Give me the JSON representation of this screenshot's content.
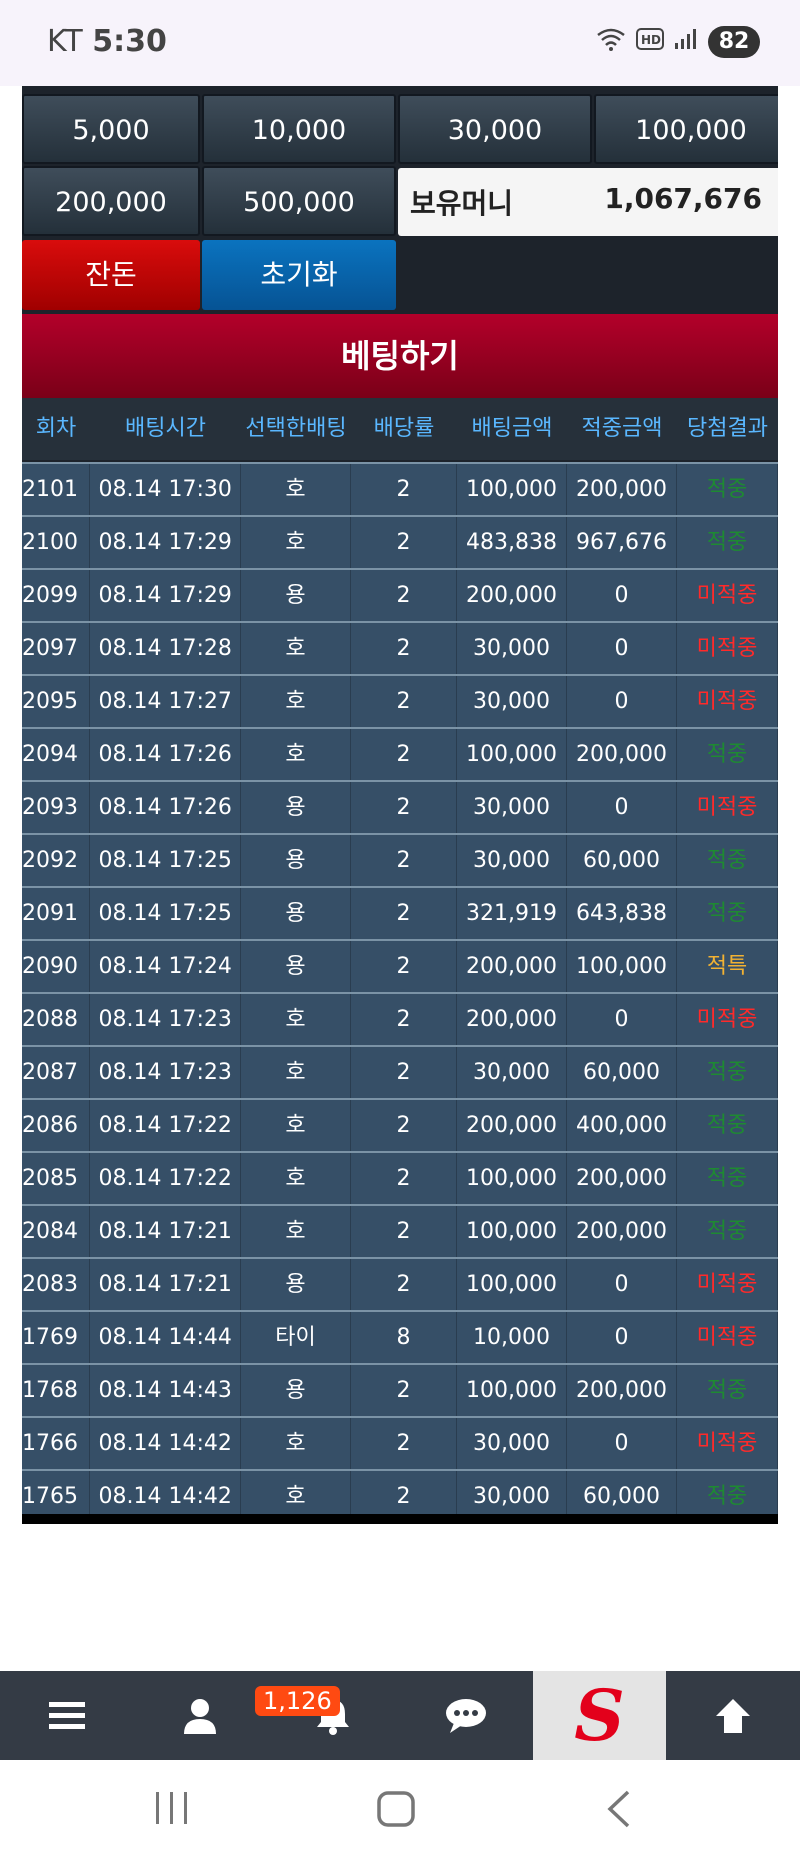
{
  "status_bar": {
    "carrier": "KT",
    "time": "5:30",
    "battery": "82"
  },
  "chips": {
    "c1": "5,000",
    "c2": "10,000",
    "c3": "30,000",
    "c4": "100,000",
    "c5": "200,000",
    "c6": "500,000"
  },
  "money": {
    "label": "보유머니",
    "value": "1,067,676"
  },
  "buttons": {
    "change": "잔돈",
    "reset": "초기화",
    "bet": "베팅하기"
  },
  "table": {
    "headers": [
      "회차",
      "배팅시간",
      "선택한배팅",
      "배당률",
      "배팅금액",
      "적중금액",
      "당첨결과"
    ],
    "rows": [
      [
        "2101",
        "08.14 17:30",
        "호",
        "2",
        "100,000",
        "200,000",
        "적중"
      ],
      [
        "2100",
        "08.14 17:29",
        "호",
        "2",
        "483,838",
        "967,676",
        "적중"
      ],
      [
        "2099",
        "08.14 17:29",
        "용",
        "2",
        "200,000",
        "0",
        "미적중"
      ],
      [
        "2097",
        "08.14 17:28",
        "호",
        "2",
        "30,000",
        "0",
        "미적중"
      ],
      [
        "2095",
        "08.14 17:27",
        "호",
        "2",
        "30,000",
        "0",
        "미적중"
      ],
      [
        "2094",
        "08.14 17:26",
        "호",
        "2",
        "100,000",
        "200,000",
        "적중"
      ],
      [
        "2093",
        "08.14 17:26",
        "용",
        "2",
        "30,000",
        "0",
        "미적중"
      ],
      [
        "2092",
        "08.14 17:25",
        "용",
        "2",
        "30,000",
        "60,000",
        "적중"
      ],
      [
        "2091",
        "08.14 17:25",
        "용",
        "2",
        "321,919",
        "643,838",
        "적중"
      ],
      [
        "2090",
        "08.14 17:24",
        "용",
        "2",
        "200,000",
        "100,000",
        "적특"
      ],
      [
        "2088",
        "08.14 17:23",
        "호",
        "2",
        "200,000",
        "0",
        "미적중"
      ],
      [
        "2087",
        "08.14 17:23",
        "호",
        "2",
        "30,000",
        "60,000",
        "적중"
      ],
      [
        "2086",
        "08.14 17:22",
        "호",
        "2",
        "200,000",
        "400,000",
        "적중"
      ],
      [
        "2085",
        "08.14 17:22",
        "호",
        "2",
        "100,000",
        "200,000",
        "적중"
      ],
      [
        "2084",
        "08.14 17:21",
        "호",
        "2",
        "100,000",
        "200,000",
        "적중"
      ],
      [
        "2083",
        "08.14 17:21",
        "용",
        "2",
        "100,000",
        "0",
        "미적중"
      ],
      [
        "1769",
        "08.14 14:44",
        "타이",
        "8",
        "10,000",
        "0",
        "미적중"
      ],
      [
        "1768",
        "08.14 14:43",
        "용",
        "2",
        "100,000",
        "200,000",
        "적중"
      ],
      [
        "1766",
        "08.14 14:42",
        "호",
        "2",
        "30,000",
        "0",
        "미적중"
      ],
      [
        "1765",
        "08.14 14:42",
        "호",
        "2",
        "30,000",
        "60,000",
        "적중"
      ]
    ]
  },
  "bottom_nav": {
    "notifications_badge": "1,126",
    "logo_letter": "S",
    "icons": [
      "menu-icon",
      "user-icon",
      "bell-icon",
      "chat-icon",
      "logo",
      "arrow-up-icon"
    ]
  },
  "colors": {
    "win": "#1e8a32",
    "lose": "#ff2a2a",
    "special": "#f2b233"
  }
}
